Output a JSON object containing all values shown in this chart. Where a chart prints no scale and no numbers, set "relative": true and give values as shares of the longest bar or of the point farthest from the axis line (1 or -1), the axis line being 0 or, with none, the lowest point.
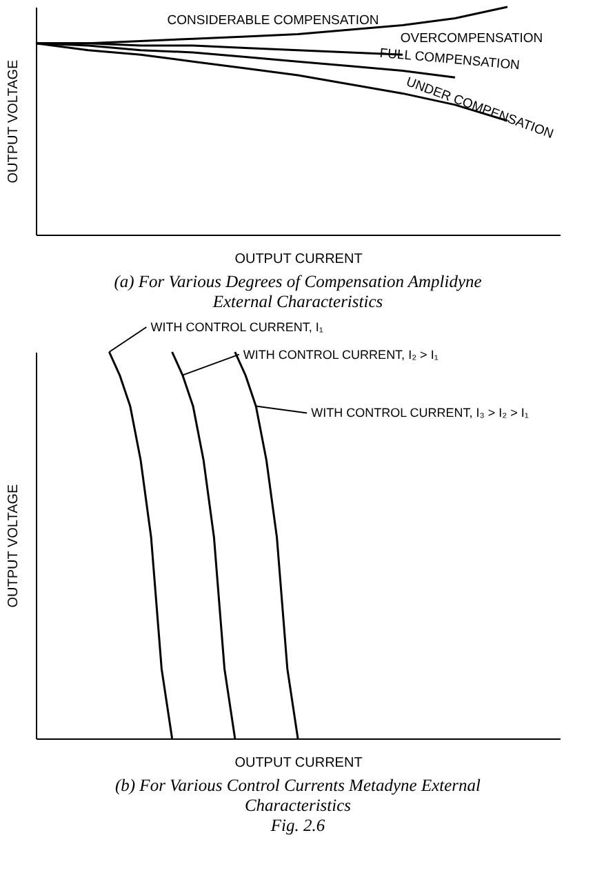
{
  "chart_data": [
    {
      "type": "line",
      "relative": true,
      "xlabel": "OUTPUT CURRENT",
      "ylabel": "OUTPUT VOLTAGE",
      "title": "(a) For Various Degrees of Compensation Amplidyne External Characteristics",
      "categories": [
        null,
        null,
        null,
        null,
        null,
        null,
        null,
        null,
        null,
        null,
        null
      ],
      "series": [
        {
          "name": "CONSIDERABLE COMPENSATION",
          "color": "#000000",
          "values": [
            0.84,
            0.84,
            0.85,
            0.86,
            0.87,
            0.88,
            0.9,
            0.92,
            0.95,
            1,
            null
          ]
        },
        {
          "name": "OVERCOMPENSATION",
          "color": "#000000",
          "values": [
            0.84,
            0.84,
            0.83,
            0.83,
            0.82,
            0.81,
            0.8,
            0.79,
            null,
            null,
            null
          ]
        },
        {
          "name": "FULL COMPENSATION",
          "color": "#000000",
          "values": [
            0.84,
            0.83,
            0.81,
            0.8,
            0.78,
            0.76,
            0.74,
            0.72,
            0.69,
            null,
            null
          ]
        },
        {
          "name": "UNDER COMPENSATION",
          "color": "#000000",
          "values": [
            0.84,
            0.81,
            0.79,
            0.76,
            0.73,
            0.7,
            0.66,
            0.62,
            0.57,
            0.5,
            null
          ]
        }
      ]
    },
    {
      "type": "line",
      "relative": true,
      "xlabel": "OUTPUT CURRENT",
      "ylabel": "OUTPUT VOLTAGE",
      "title": "(b) For Various Control Currents Metadyne External Characteristics",
      "annotations": [
        "Fig. 2.6"
      ],
      "categories": [
        null,
        null,
        null,
        null,
        null,
        null,
        null,
        null,
        null,
        null,
        null,
        null,
        null,
        null,
        null,
        null,
        null,
        null,
        null,
        null,
        null,
        null,
        null,
        null,
        null,
        null,
        null,
        null,
        null,
        null,
        null,
        null,
        null,
        null,
        null,
        null,
        null,
        null,
        null,
        null,
        null,
        null,
        null,
        null,
        null,
        null,
        null,
        null,
        null,
        null,
        null
      ],
      "series": [
        {
          "name": "WITH CONTROL CURRENT, I₁",
          "color": "#000000",
          "values": [
            null,
            null,
            null,
            null,
            null,
            null,
            null,
            1,
            0.94,
            0.86,
            0.72,
            0.52,
            0.18,
            0,
            null,
            null,
            null,
            null,
            null,
            null,
            null,
            null,
            null,
            null,
            null,
            null,
            null,
            null,
            null,
            null,
            null,
            null,
            null,
            null,
            null,
            null,
            null,
            null,
            null,
            null,
            null,
            null,
            null,
            null,
            null,
            null,
            null,
            null,
            null,
            null,
            null
          ]
        },
        {
          "name": "WITH CONTROL CURRENT, I₂ > I₁",
          "color": "#000000",
          "values": [
            null,
            null,
            null,
            null,
            null,
            null,
            null,
            null,
            null,
            null,
            null,
            null,
            null,
            1,
            0.94,
            0.86,
            0.72,
            0.52,
            0.18,
            0,
            null,
            null,
            null,
            null,
            null,
            null,
            null,
            null,
            null,
            null,
            null,
            null,
            null,
            null,
            null,
            null,
            null,
            null,
            null,
            null,
            null,
            null,
            null,
            null,
            null,
            null,
            null,
            null,
            null,
            null,
            null
          ]
        },
        {
          "name": "WITH CONTROL CURRENT, I₃ > I₂ > I₁",
          "color": "#000000",
          "values": [
            null,
            null,
            null,
            null,
            null,
            null,
            null,
            null,
            null,
            null,
            null,
            null,
            null,
            null,
            null,
            null,
            null,
            null,
            null,
            1,
            0.94,
            0.86,
            0.72,
            0.52,
            0.18,
            0,
            null,
            null,
            null,
            null,
            null,
            null,
            null,
            null,
            null,
            null,
            null,
            null,
            null,
            null,
            null,
            null,
            null,
            null,
            null,
            null,
            null,
            null,
            null,
            null,
            null
          ]
        }
      ]
    }
  ]
}
